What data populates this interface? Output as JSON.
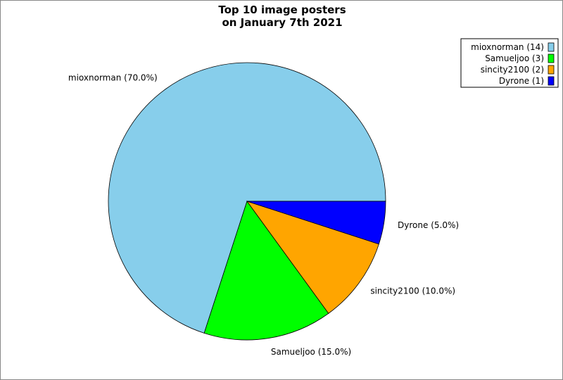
{
  "chart_data": {
    "type": "pie",
    "title": [
      "Top 10 image posters",
      "on January 7th 2021"
    ],
    "categories": [
      "mioxnorman",
      "Samueljoo",
      "sincity2100",
      "Dyrone"
    ],
    "values": [
      14,
      3,
      2,
      1
    ],
    "percent_labels": [
      "mioxnorman (70.0%)",
      "Samueljoo (15.0%)",
      "sincity2100 (10.0%)",
      "Dyrone (5.0%)"
    ],
    "legend_labels": [
      "mioxnorman (14)",
      "Samueljoo (3)",
      "sincity2100 (2)",
      "Dyrone (1)"
    ],
    "colors": [
      "#87ceeb",
      "#00ff00",
      "#ffa500",
      "#0000ff"
    ],
    "legend_placement": "top-right",
    "start_angle": "east, counterclockwise"
  }
}
